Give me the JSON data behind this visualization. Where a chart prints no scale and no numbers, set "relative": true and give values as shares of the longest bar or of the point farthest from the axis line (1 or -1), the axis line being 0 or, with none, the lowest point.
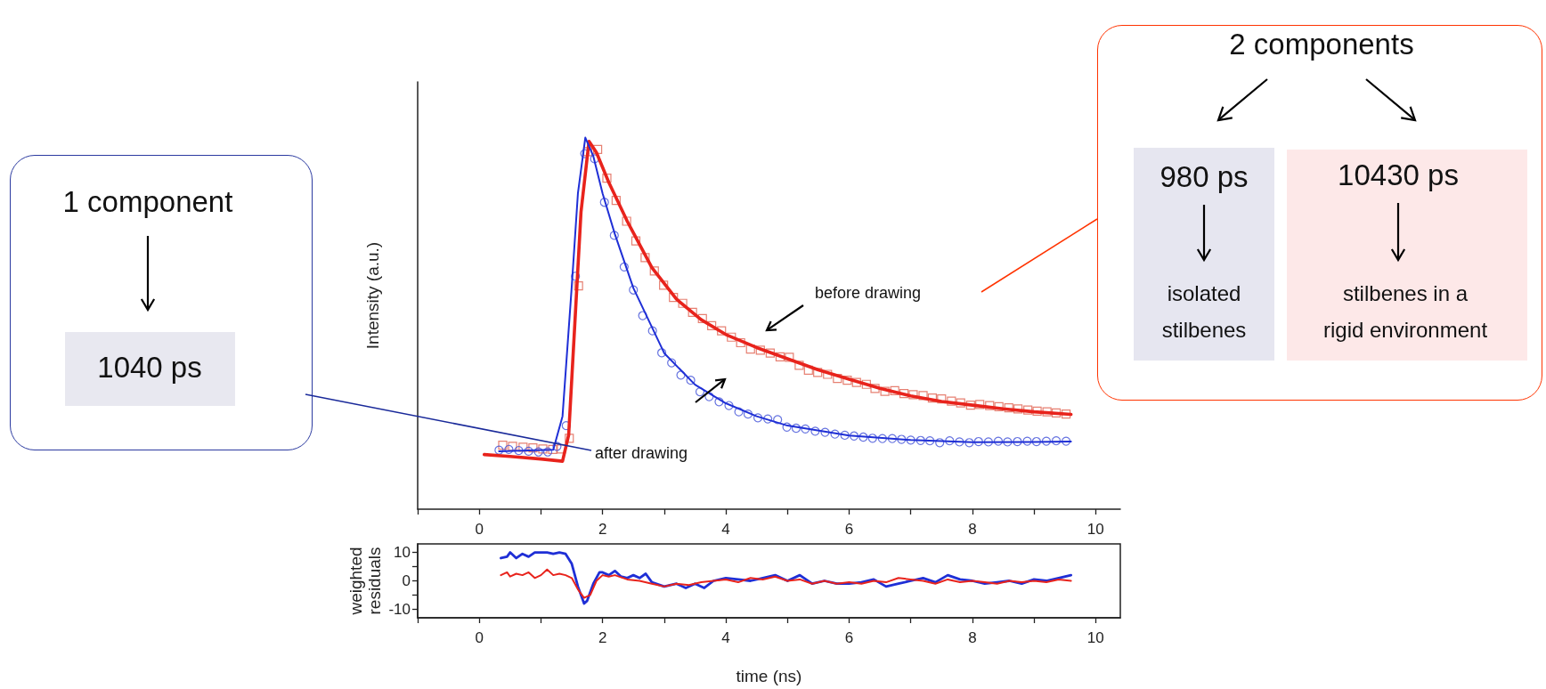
{
  "chart_data": [
    {
      "type": "line",
      "ylabel": "Intensity (a.u.)",
      "relative": true,
      "tick_labels": "x",
      "xlim": [
        -1,
        10.4
      ],
      "xticks": [
        {
          "value": -1,
          "label": null
        },
        0,
        {
          "value": 1,
          "label": null
        },
        2,
        {
          "value": 3,
          "label": null
        },
        4,
        {
          "value": 5,
          "label": null
        },
        6,
        {
          "value": 7,
          "label": null
        },
        8,
        {
          "value": 9,
          "label": null
        },
        10
      ],
      "series": [
        {
          "type": "scatter",
          "marker": "square",
          "color": "#e0604f",
          "x": [
            0.38,
            0.54,
            0.71,
            0.87,
            1.03,
            1.19,
            1.33,
            1.46,
            1.61,
            1.76,
            1.92,
            2.07,
            2.22,
            2.39,
            2.54,
            2.69,
            2.84,
            2.99,
            3.15,
            3.3,
            3.46,
            3.62,
            3.77,
            3.93,
            4.09,
            4.24,
            4.4,
            4.56,
            4.72,
            4.88,
            5.03,
            5.19,
            5.34,
            5.49,
            5.65,
            5.81,
            5.97,
            6.12,
            6.28,
            6.42,
            6.58,
            6.74,
            6.89,
            7.04,
            7.2,
            7.35,
            7.5,
            7.66,
            7.81,
            7.97,
            8.12,
            8.28,
            8.43,
            8.59,
            8.74,
            8.9,
            9.05,
            9.21,
            9.36,
            9.52
          ],
          "values": [
            0.172,
            0.169,
            0.167,
            0.165,
            0.162,
            0.161,
            0.162,
            0.191,
            0.601,
            0.962,
            0.968,
            0.891,
            0.831,
            0.775,
            0.722,
            0.677,
            0.641,
            0.603,
            0.57,
            0.554,
            0.53,
            0.513,
            0.494,
            0.48,
            0.463,
            0.448,
            0.431,
            0.428,
            0.42,
            0.41,
            0.409,
            0.387,
            0.374,
            0.368,
            0.363,
            0.352,
            0.347,
            0.341,
            0.336,
            0.325,
            0.317,
            0.319,
            0.311,
            0.308,
            0.306,
            0.299,
            0.297,
            0.291,
            0.286,
            0.28,
            0.282,
            0.279,
            0.276,
            0.273,
            0.27,
            0.267,
            0.264,
            0.262,
            0.259,
            0.256
          ]
        },
        {
          "marker": "none",
          "color": "#e8231c",
          "x": [
            0.08,
            0.5,
            1.0,
            1.35,
            1.45,
            1.55,
            1.65,
            1.78,
            1.9,
            2.1,
            2.4,
            2.8,
            3.2,
            3.6,
            4.0,
            4.5,
            5.0,
            5.5,
            6.0,
            6.5,
            7.0,
            7.5,
            8.0,
            8.5,
            9.0,
            9.6
          ],
          "values": [
            0.147,
            0.142,
            0.135,
            0.129,
            0.2,
            0.5,
            0.8,
            0.99,
            0.96,
            0.88,
            0.775,
            0.65,
            0.565,
            0.51,
            0.47,
            0.435,
            0.405,
            0.375,
            0.35,
            0.325,
            0.305,
            0.29,
            0.28,
            0.27,
            0.262,
            0.255
          ]
        },
        {
          "type": "scatter",
          "marker": "circle",
          "color": "#4050d8",
          "x": [
            0.32,
            0.48,
            0.64,
            0.8,
            0.96,
            1.11,
            1.26,
            1.41,
            1.56,
            1.71,
            1.87,
            2.03,
            2.19,
            2.35,
            2.5,
            2.65,
            2.81,
            2.96,
            3.12,
            3.27,
            3.43,
            3.58,
            3.73,
            3.89,
            4.05,
            4.21,
            4.36,
            4.52,
            4.68,
            4.84,
            4.99,
            5.14,
            5.29,
            5.45,
            5.61,
            5.77,
            5.93,
            6.08,
            6.23,
            6.38,
            6.54,
            6.7,
            6.85,
            7.0,
            7.16,
            7.31,
            7.47,
            7.63,
            7.79,
            7.95,
            8.1,
            8.26,
            8.42,
            8.57,
            8.73,
            8.89,
            9.04,
            9.2,
            9.36,
            9.52
          ],
          "values": [
            0.159,
            0.161,
            0.158,
            0.156,
            0.154,
            0.154,
            0.169,
            0.225,
            0.627,
            0.957,
            0.943,
            0.826,
            0.737,
            0.652,
            0.59,
            0.521,
            0.48,
            0.421,
            0.394,
            0.361,
            0.347,
            0.316,
            0.303,
            0.289,
            0.279,
            0.262,
            0.256,
            0.246,
            0.243,
            0.241,
            0.221,
            0.218,
            0.216,
            0.21,
            0.207,
            0.202,
            0.199,
            0.197,
            0.194,
            0.191,
            0.19,
            0.19,
            0.188,
            0.186,
            0.185,
            0.184,
            0.179,
            0.184,
            0.181,
            0.179,
            0.182,
            0.181,
            0.183,
            0.181,
            0.182,
            0.183,
            0.182,
            0.183,
            0.184,
            0.183
          ]
        },
        {
          "marker": "none",
          "color": "#1f2fd6",
          "x": [
            0.32,
            0.8,
            1.2,
            1.35,
            1.5,
            1.6,
            1.72,
            1.85,
            2.0,
            2.2,
            2.5,
            3.0,
            3.5,
            4.0,
            4.5,
            5.0,
            6.0,
            7.0,
            8.0,
            9.0,
            9.6
          ],
          "values": [
            0.156,
            0.158,
            0.16,
            0.25,
            0.6,
            0.85,
            1.0,
            0.95,
            0.85,
            0.74,
            0.595,
            0.42,
            0.335,
            0.285,
            0.25,
            0.225,
            0.198,
            0.186,
            0.18,
            0.181,
            0.182
          ]
        }
      ],
      "annotations": [
        "before drawing",
        "after drawing",
        "1 component",
        "1040 ps",
        "2 components",
        "980 ps",
        "isolated stilbenes",
        "10430 ps",
        "stilbenes in a rigid environment"
      ]
    },
    {
      "type": "line",
      "xlabel": "time (ns)",
      "ylabel": "weighted residuals",
      "marker": "none",
      "xlim": [
        -1,
        10.4
      ],
      "xticks": [
        {
          "value": -1,
          "label": null
        },
        0,
        {
          "value": 1,
          "label": null
        },
        2,
        {
          "value": 3,
          "label": null
        },
        4,
        {
          "value": 5,
          "label": null
        },
        6,
        {
          "value": 7,
          "label": null
        },
        8,
        {
          "value": 9,
          "label": null
        },
        10
      ],
      "ylim": [
        -13,
        13
      ],
      "yticks": [
        -10,
        {
          "value": -5,
          "label": null
        },
        0,
        {
          "value": 5,
          "label": null
        },
        10
      ],
      "series": [
        {
          "color": "#1f2fd6",
          "x": [
            0.35,
            0.45,
            0.5,
            0.6,
            0.7,
            0.8,
            0.9,
            1.0,
            1.1,
            1.2,
            1.3,
            1.4,
            1.5,
            1.6,
            1.7,
            1.75,
            1.85,
            1.95,
            2.0,
            2.1,
            2.2,
            2.3,
            2.4,
            2.5,
            2.6,
            2.7,
            2.8,
            3.0,
            3.2,
            3.35,
            3.5,
            3.65,
            3.8,
            4.0,
            4.2,
            4.4,
            4.6,
            4.8,
            5.0,
            5.2,
            5.4,
            5.6,
            5.8,
            6.0,
            6.2,
            6.4,
            6.6,
            6.8,
            7.0,
            7.2,
            7.4,
            7.6,
            7.8,
            8.0,
            8.2,
            8.4,
            8.6,
            8.8,
            9.0,
            9.2,
            9.4,
            9.6
          ],
          "values": [
            8,
            8.5,
            10,
            8,
            9.5,
            8.5,
            10,
            10,
            10,
            9.5,
            10,
            9.5,
            6,
            -2,
            -8,
            -7,
            -1,
            3,
            3,
            2,
            3.5,
            1.5,
            1,
            2,
            1,
            2.5,
            -0.5,
            -2,
            -1,
            -2.5,
            -1,
            -2.5,
            0,
            1,
            0.5,
            0,
            1,
            2,
            0,
            2,
            -1,
            0,
            -1,
            -1,
            -0.5,
            0.5,
            -2,
            -1,
            0,
            1,
            -0.5,
            2,
            0.5,
            0,
            -1,
            -0.5,
            0,
            -1,
            0.5,
            0,
            1,
            2
          ]
        },
        {
          "color": "#e8231c",
          "x": [
            0.35,
            0.45,
            0.5,
            0.6,
            0.7,
            0.8,
            0.9,
            1.0,
            1.1,
            1.2,
            1.3,
            1.4,
            1.5,
            1.6,
            1.7,
            1.8,
            1.9,
            2.0,
            2.1,
            2.2,
            2.4,
            2.6,
            2.8,
            3.0,
            3.2,
            3.4,
            3.6,
            3.8,
            4.0,
            4.2,
            4.4,
            4.6,
            4.8,
            5.0,
            5.2,
            5.4,
            5.6,
            5.8,
            6.0,
            6.2,
            6.4,
            6.6,
            6.8,
            7.0,
            7.2,
            7.4,
            7.6,
            7.8,
            8.0,
            8.2,
            8.4,
            8.6,
            8.8,
            9.0,
            9.2,
            9.4,
            9.6
          ],
          "values": [
            2,
            3,
            1.5,
            2.5,
            2,
            3,
            1,
            2,
            4,
            2,
            2.5,
            2,
            1,
            -3,
            -6,
            -5,
            0,
            2,
            1.5,
            2,
            0.5,
            0,
            -1,
            -2,
            -1,
            -1.5,
            -0.5,
            0,
            0.5,
            -0.5,
            1,
            0.5,
            1.5,
            0,
            0.5,
            -1,
            0,
            -1,
            -0.5,
            -1,
            0,
            -0.5,
            1,
            0.5,
            0,
            -1,
            0.5,
            -0.5,
            0,
            -0.5,
            -1,
            0,
            -0.5,
            0,
            -0.5,
            0.5,
            0
          ]
        }
      ]
    }
  ]
}
